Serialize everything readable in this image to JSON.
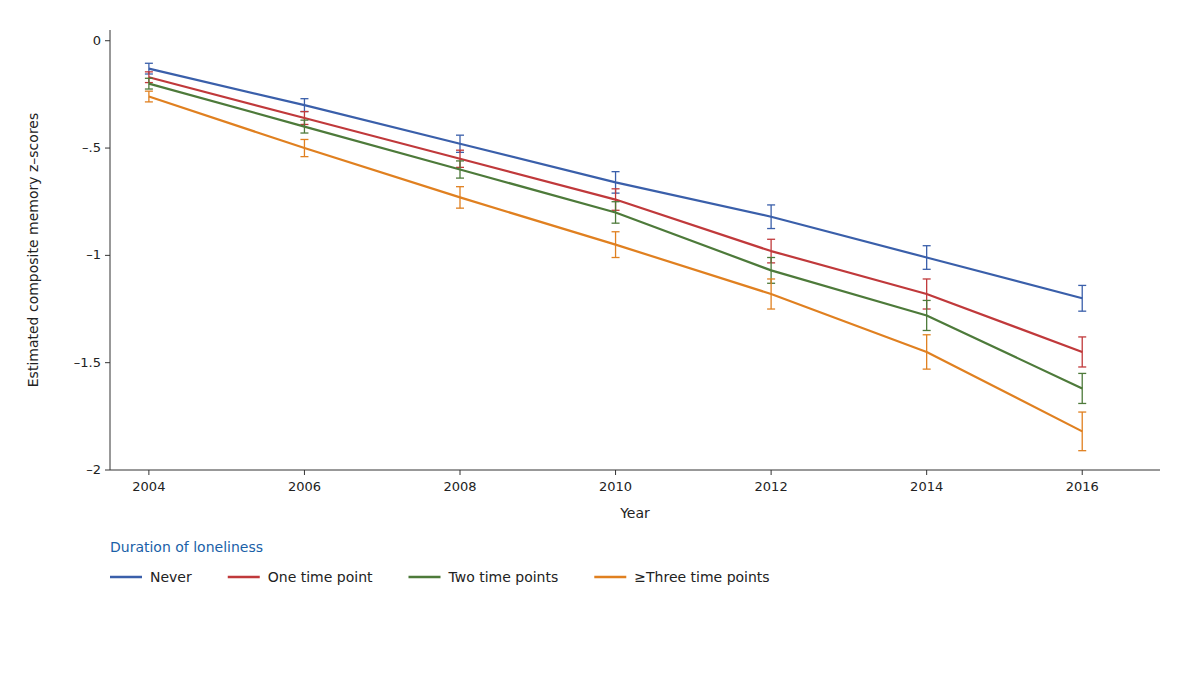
{
  "chart_data": {
    "type": "line",
    "x": [
      2004,
      2006,
      2008,
      2010,
      2012,
      2014,
      2016
    ],
    "series": [
      {
        "name": "Never",
        "color": "#3a5faa",
        "values": [
          -0.13,
          -0.3,
          -0.48,
          -0.66,
          -0.82,
          -1.01,
          -1.2
        ],
        "errors": [
          0.025,
          0.03,
          0.04,
          0.05,
          0.055,
          0.055,
          0.06
        ]
      },
      {
        "name": "One time point",
        "color": "#c0393b",
        "values": [
          -0.17,
          -0.36,
          -0.55,
          -0.74,
          -0.98,
          -1.18,
          -1.45
        ],
        "errors": [
          0.025,
          0.03,
          0.04,
          0.05,
          0.055,
          0.07,
          0.07
        ]
      },
      {
        "name": "Two time points",
        "color": "#4d7a3a",
        "values": [
          -0.2,
          -0.4,
          -0.6,
          -0.8,
          -1.07,
          -1.28,
          -1.62
        ],
        "errors": [
          0.025,
          0.03,
          0.04,
          0.05,
          0.06,
          0.07,
          0.07
        ]
      },
      {
        "name": "≥Three time points",
        "color": "#e08020",
        "values": [
          -0.26,
          -0.5,
          -0.73,
          -0.95,
          -1.18,
          -1.45,
          -1.82
        ],
        "errors": [
          0.025,
          0.04,
          0.05,
          0.06,
          0.07,
          0.08,
          0.09
        ]
      }
    ],
    "xlabel": "Year",
    "ylabel": "Estimated composite memory z–scores",
    "xlim": [
      2003.5,
      2017.0
    ],
    "ylim": [
      -2.0,
      0.05
    ],
    "xticks": [
      2004,
      2006,
      2008,
      2010,
      2012,
      2014,
      2016
    ],
    "yticks": [
      0,
      {
        "value": -0.5,
        "label": "–.5"
      },
      {
        "value": -1.0,
        "label": "–1"
      },
      {
        "value": -1.5,
        "label": "–1.5"
      },
      {
        "value": -2.0,
        "label": "–2"
      }
    ],
    "annotations": [
      {
        "text": "Duration of loneliness",
        "color": "#1a5fa8"
      }
    ],
    "grid": false,
    "legend": "bottom",
    "line_style": "solid",
    "marker": "none"
  }
}
